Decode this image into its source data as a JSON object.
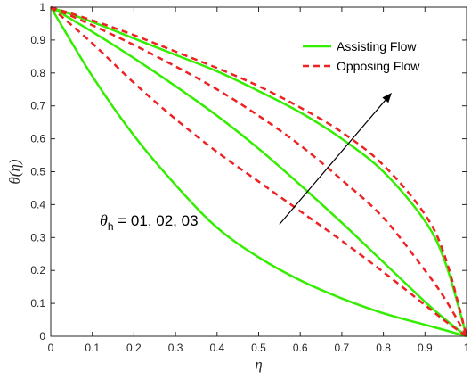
{
  "chart_data": {
    "type": "line",
    "xlabel": "η",
    "ylabel": "θ(η)",
    "xlim": [
      0,
      1
    ],
    "ylim": [
      0,
      1
    ],
    "xticks": [
      0,
      0.1,
      0.2,
      0.3,
      0.4,
      0.5,
      0.6,
      0.7,
      0.8,
      0.9,
      1
    ],
    "yticks": [
      0,
      0.1,
      0.2,
      0.3,
      0.4,
      0.5,
      0.6,
      0.7,
      0.8,
      0.9,
      1
    ],
    "xtick_labels": [
      "0",
      "0.1",
      "0.2",
      "0.3",
      "0.4",
      "0.5",
      "0.6",
      "0.7",
      "0.8",
      "0.9",
      "1"
    ],
    "ytick_labels": [
      "0",
      "0.1",
      "0.2",
      "0.3",
      "0.4",
      "0.5",
      "0.6",
      "0.7",
      "0.8",
      "0.9",
      "1"
    ],
    "grid": false,
    "legend_position": "top-right",
    "legend": [
      {
        "label": "Assisting Flow",
        "color": "#33ee00",
        "style": "solid"
      },
      {
        "label": "Opposing Flow",
        "color": "#ee2222",
        "style": "dashed"
      }
    ],
    "annotation": {
      "symbol": "θ",
      "subscript": "h",
      "text": " = 01, 02, 03",
      "arrow_from": [
        0.55,
        0.34
      ],
      "arrow_to": [
        0.82,
        0.74
      ]
    },
    "x": [
      0,
      0.1,
      0.2,
      0.3,
      0.4,
      0.5,
      0.6,
      0.7,
      0.8,
      0.9,
      0.95,
      1
    ],
    "series": [
      {
        "group": "Assisting Flow",
        "color": "#33ee00",
        "dash": "solid",
        "values": [
          1,
          0.79,
          0.61,
          0.46,
          0.33,
          0.24,
          0.17,
          0.115,
          0.07,
          0.035,
          0.018,
          0
        ]
      },
      {
        "group": "Assisting Flow",
        "color": "#33ee00",
        "dash": "solid",
        "values": [
          1,
          0.925,
          0.845,
          0.76,
          0.67,
          0.57,
          0.46,
          0.345,
          0.225,
          0.105,
          0.05,
          0
        ]
      },
      {
        "group": "Assisting Flow",
        "color": "#33ee00",
        "dash": "solid",
        "values": [
          1,
          0.955,
          0.905,
          0.855,
          0.805,
          0.745,
          0.68,
          0.6,
          0.5,
          0.35,
          0.22,
          0
        ]
      },
      {
        "group": "Opposing Flow",
        "color": "#ee2222",
        "dash": "dashed",
        "values": [
          1,
          0.89,
          0.77,
          0.66,
          0.56,
          0.47,
          0.38,
          0.29,
          0.195,
          0.095,
          0.045,
          0
        ]
      },
      {
        "group": "Opposing Flow",
        "color": "#ee2222",
        "dash": "dashed",
        "values": [
          1,
          0.945,
          0.885,
          0.82,
          0.75,
          0.67,
          0.58,
          0.475,
          0.36,
          0.2,
          0.11,
          0
        ]
      },
      {
        "group": "Opposing Flow",
        "color": "#ee2222",
        "dash": "dashed",
        "values": [
          1,
          0.96,
          0.915,
          0.865,
          0.815,
          0.76,
          0.695,
          0.62,
          0.52,
          0.37,
          0.235,
          0
        ]
      }
    ]
  }
}
